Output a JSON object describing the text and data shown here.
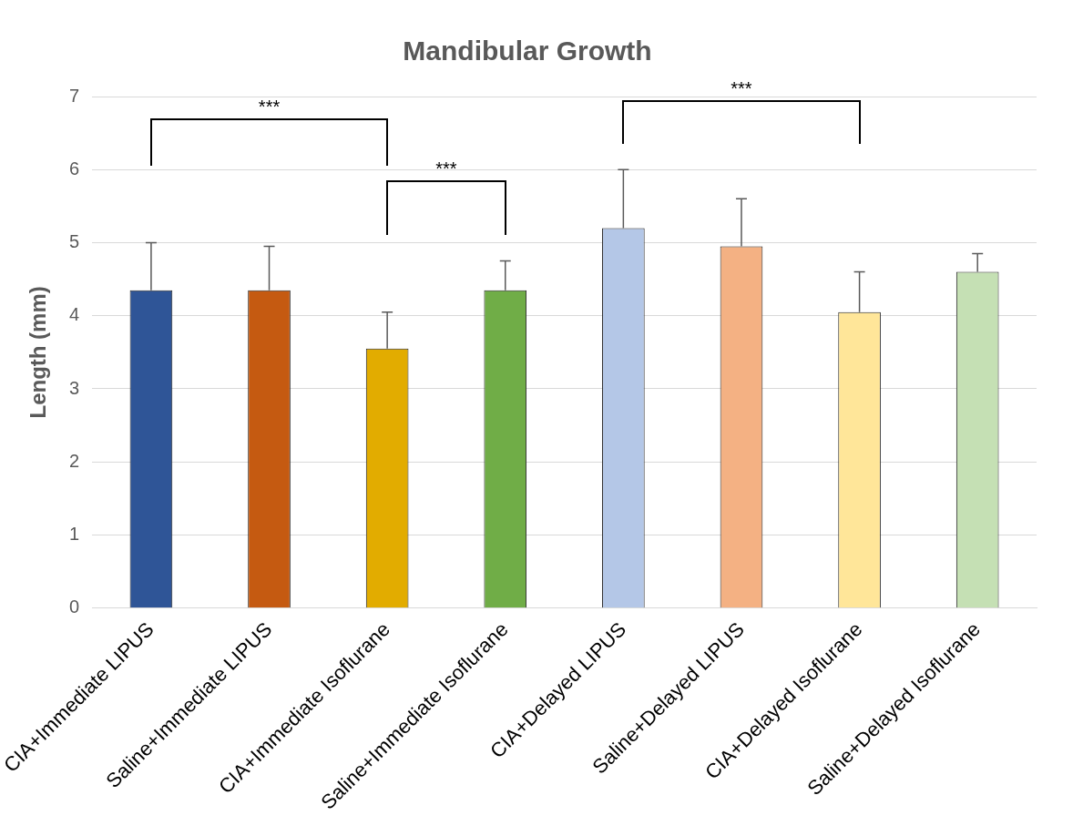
{
  "chart_data": {
    "type": "bar",
    "title": "Mandibular Growth",
    "ylabel": "Length (mm)",
    "categories": [
      "CIA+Immediate LIPUS",
      "Saline+Immediate LIPUS",
      "CIA+Immediate Isoflurane",
      "Saline+Immediate Isoflurane",
      "CIA+Delayed LIPUS",
      "Saline+Delayed LIPUS",
      "CIA+Delayed Isoflurane",
      "Saline+Delayed Isoflurane"
    ],
    "values": [
      4.35,
      4.35,
      3.55,
      4.35,
      5.2,
      4.95,
      4.05,
      4.6
    ],
    "errors": [
      [
        4.35,
        5.0
      ],
      [
        4.35,
        4.95
      ],
      [
        3.55,
        4.05
      ],
      [
        4.35,
        4.75
      ],
      [
        5.2,
        6.0
      ],
      [
        4.95,
        5.6
      ],
      [
        4.05,
        4.6
      ],
      [
        4.6,
        4.85
      ]
    ],
    "colors": [
      "#2f5597",
      "#c55a11",
      "#e2ac00",
      "#70ad47",
      "#b4c7e7",
      "#f4b183",
      "#ffe699",
      "#c5e0b4"
    ],
    "ylim": [
      0,
      7
    ],
    "yticks": [
      0,
      1,
      2,
      3,
      4,
      5,
      6,
      7
    ],
    "grid": "y",
    "legend": false,
    "annotations": [
      "***",
      "***",
      "***"
    ]
  }
}
